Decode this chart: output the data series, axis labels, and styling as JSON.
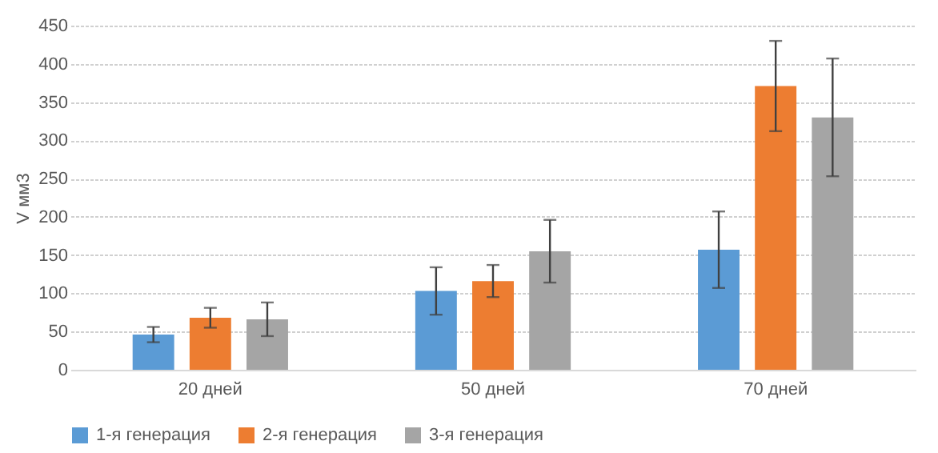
{
  "chart_data": {
    "type": "bar",
    "ylabel": "V мм3",
    "categories": [
      "20 дней",
      "50 дней",
      "70 дней"
    ],
    "series": [
      {
        "name": "1-я генерация",
        "color": "#5b9bd5",
        "values": [
          46,
          103,
          157
        ],
        "errors": [
          10,
          31,
          50
        ]
      },
      {
        "name": "2-я генерация",
        "color": "#ed7d31",
        "values": [
          68,
          116,
          371
        ],
        "errors": [
          13,
          21,
          59
        ]
      },
      {
        "name": "3-я генерация",
        "color": "#a5a5a5",
        "values": [
          66,
          155,
          330
        ],
        "errors": [
          22,
          41,
          77
        ]
      }
    ],
    "ylim": [
      0,
      450
    ],
    "yticks": [
      0,
      50,
      100,
      150,
      200,
      250,
      300,
      350,
      400,
      450
    ],
    "grid": "y",
    "legend": "bottom"
  }
}
